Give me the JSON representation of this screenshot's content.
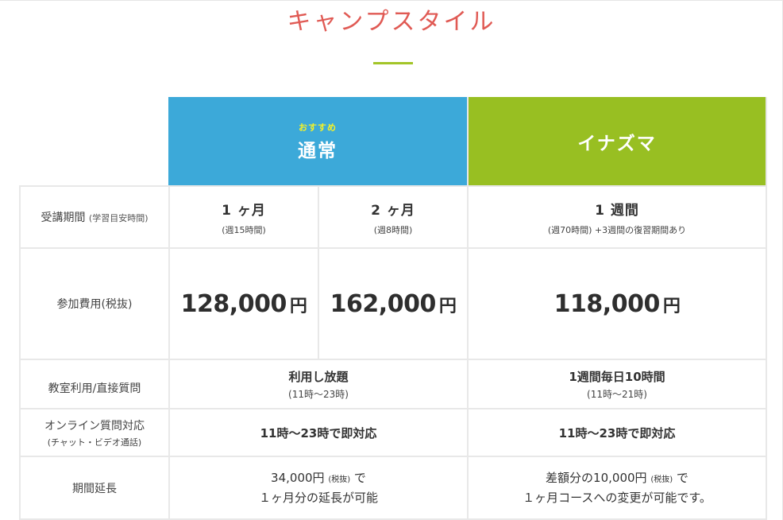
{
  "page": {
    "title": "キャンプスタイル"
  },
  "header": {
    "regular": {
      "badge": "おすすめ",
      "label": "通常"
    },
    "inazuma": {
      "label": "イナズマ"
    }
  },
  "rows": {
    "period": {
      "label": "受講期間",
      "label_small": "(学習目安時間)",
      "one_month": {
        "main": "1 ヶ月",
        "sub": "(週15時間)"
      },
      "two_month": {
        "main": "2 ヶ月",
        "sub": "(週8時間)"
      },
      "one_week": {
        "main": "1 週間",
        "sub": "(週70時間) +3週間の復習期間あり"
      }
    },
    "fee": {
      "label": "参加費用(税抜)",
      "one_month": {
        "amount": "128,000",
        "unit": "円"
      },
      "two_month": {
        "amount": "162,000",
        "unit": "円"
      },
      "inazuma": {
        "amount": "118,000",
        "unit": "円"
      }
    },
    "classroom": {
      "label": "教室利用/直接質問",
      "regular": {
        "main": "利用し放題",
        "sub": "(11時〜23時)"
      },
      "inazuma": {
        "main": "1週間毎日10時間",
        "sub": "(11時〜21時)"
      }
    },
    "online": {
      "label": "オンライン質問対応",
      "label_small": "(チャット・ビデオ通話)",
      "regular": "11時〜23時で即対応",
      "inazuma": "11時〜23時で即対応"
    },
    "extension": {
      "label": "期間延長",
      "regular": {
        "line1_a": "34,000円",
        "line1_small": "(税抜)",
        "line1_b": "で",
        "line2": "１ヶ月分の延長が可能"
      },
      "inazuma": {
        "line1_a": "差額分の10,000円",
        "line1_small": "(税抜)",
        "line1_b": "で",
        "line2": "１ヶ月コースへの変更が可能です。"
      }
    }
  },
  "colors": {
    "title": "#e05a54",
    "accent_green": "#a3c528",
    "regular_header": "#3ca9d9",
    "inazuma_header": "#98bf22",
    "badge": "#f3f22a",
    "border": "#e8e8e8"
  }
}
